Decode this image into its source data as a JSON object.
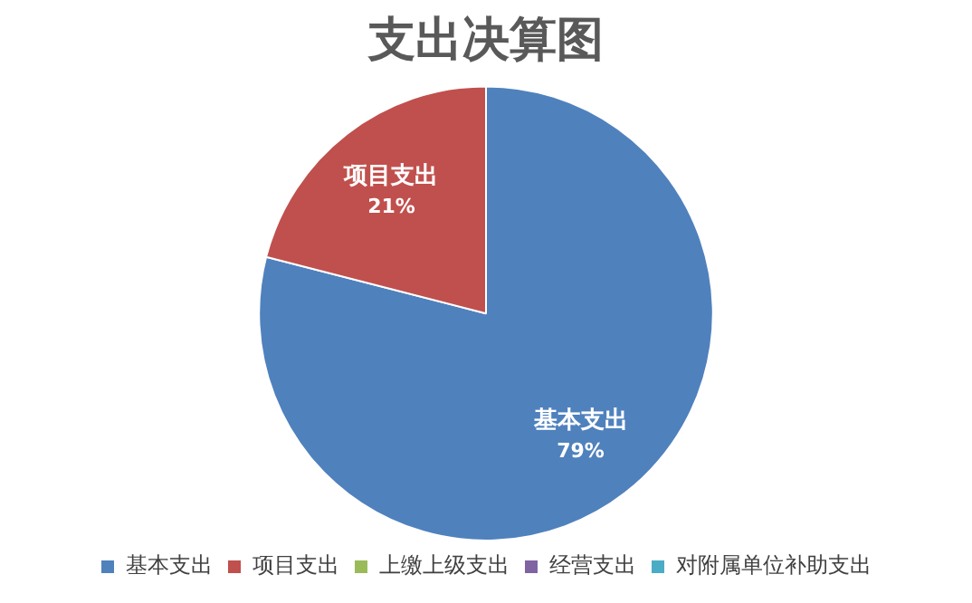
{
  "chart_data": {
    "type": "pie",
    "title": "支出决算图",
    "categories": [
      "基本支出",
      "项目支出",
      "上缴上级支出",
      "经营支出",
      "对附属单位补助支出"
    ],
    "values": [
      79,
      21,
      0,
      0,
      0
    ],
    "colors": [
      "#4f81bd",
      "#c0504d",
      "#9bbb59",
      "#8064a2",
      "#4bacc6"
    ],
    "value_labels": [
      "79%",
      "21%",
      null,
      null,
      null
    ],
    "legend": "bottom"
  }
}
